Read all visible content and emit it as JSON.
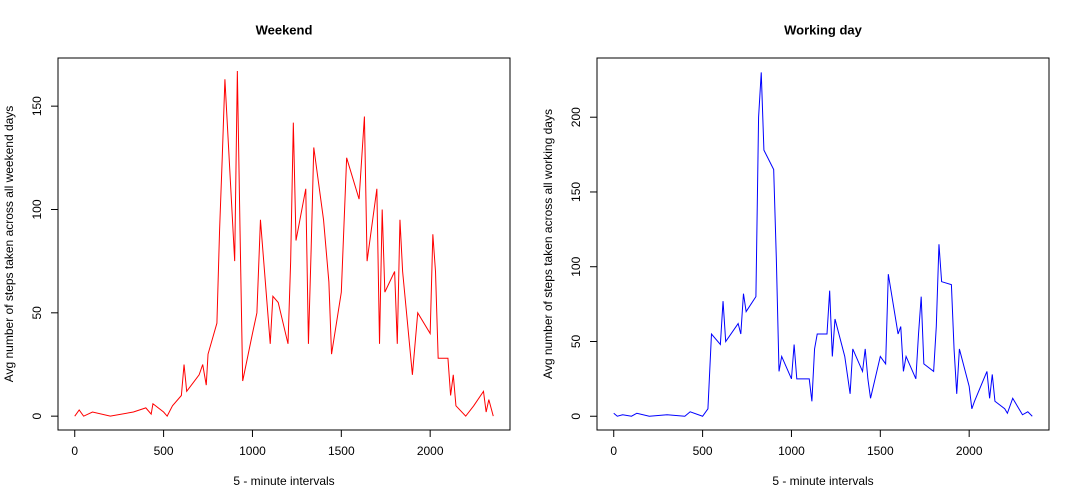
{
  "chart_data": [
    {
      "type": "line",
      "title": "Weekend",
      "x_label": "5 - minute intervals",
      "y_label": "Avg number of steps taken across all weekend days",
      "color": "#ff0000",
      "x": [
        0,
        25,
        50,
        100,
        200,
        330,
        400,
        430,
        440,
        500,
        520,
        550,
        600,
        615,
        630,
        700,
        720,
        740,
        750,
        800,
        815,
        830,
        845,
        900,
        915,
        930,
        945,
        1000,
        1025,
        1045,
        1100,
        1115,
        1145,
        1200,
        1215,
        1230,
        1245,
        1300,
        1315,
        1330,
        1345,
        1400,
        1430,
        1445,
        1500,
        1530,
        1600,
        1630,
        1645,
        1700,
        1715,
        1730,
        1745,
        1800,
        1815,
        1830,
        1845,
        1900,
        1930,
        2000,
        2015,
        2030,
        2045,
        2100,
        2115,
        2130,
        2145,
        2200,
        2245,
        2300,
        2315,
        2330,
        2355
      ],
      "values": [
        0,
        3,
        0,
        2,
        0,
        2,
        4,
        1,
        6,
        2,
        0,
        5,
        10,
        25,
        12,
        20,
        25,
        15,
        30,
        45,
        90,
        125,
        163,
        75,
        167,
        90,
        17,
        40,
        50,
        95,
        35,
        58,
        55,
        35,
        75,
        142,
        85,
        110,
        35,
        80,
        130,
        95,
        65,
        30,
        60,
        125,
        105,
        145,
        75,
        110,
        35,
        100,
        60,
        70,
        35,
        95,
        70,
        20,
        50,
        40,
        88,
        70,
        28,
        28,
        10,
        20,
        5,
        0,
        5,
        12,
        2,
        8,
        0
      ],
      "xlim": [
        -94.2,
        2449.2
      ],
      "ylim": [
        -6.7,
        173.3
      ],
      "xticks": [
        0,
        500,
        1000,
        1500,
        2000
      ],
      "yticks": [
        0,
        50,
        100,
        150
      ]
    },
    {
      "type": "line",
      "title": "Working day",
      "x_label": "5 - minute intervals",
      "y_label": "Avg number of steps taken across all working days",
      "color": "#0000ff",
      "x": [
        0,
        20,
        50,
        100,
        130,
        200,
        300,
        400,
        430,
        500,
        530,
        550,
        600,
        615,
        630,
        700,
        715,
        730,
        745,
        800,
        815,
        830,
        845,
        900,
        915,
        930,
        945,
        1000,
        1015,
        1030,
        1100,
        1115,
        1130,
        1145,
        1200,
        1215,
        1230,
        1245,
        1300,
        1330,
        1345,
        1400,
        1415,
        1430,
        1445,
        1500,
        1530,
        1545,
        1600,
        1615,
        1630,
        1645,
        1700,
        1715,
        1730,
        1745,
        1800,
        1815,
        1830,
        1845,
        1900,
        1915,
        1930,
        1945,
        2000,
        2015,
        2030,
        2100,
        2115,
        2130,
        2145,
        2200,
        2215,
        2245,
        2300,
        2330,
        2355
      ],
      "values": [
        2,
        0,
        1,
        0,
        2,
        0,
        1,
        0,
        3,
        0,
        5,
        55,
        48,
        77,
        50,
        62,
        55,
        82,
        70,
        80,
        200,
        230,
        178,
        165,
        105,
        30,
        40,
        25,
        48,
        25,
        25,
        10,
        45,
        55,
        55,
        84,
        40,
        65,
        40,
        15,
        45,
        30,
        45,
        25,
        12,
        40,
        35,
        95,
        55,
        60,
        30,
        40,
        25,
        55,
        80,
        35,
        30,
        60,
        115,
        90,
        88,
        45,
        15,
        45,
        20,
        5,
        10,
        30,
        12,
        28,
        10,
        5,
        2,
        12,
        1,
        3,
        0
      ],
      "xlim": [
        -94.2,
        2449.2
      ],
      "ylim": [
        -9.2,
        239.6
      ],
      "xticks": [
        0,
        500,
        1000,
        1500,
        2000
      ],
      "yticks": [
        0,
        50,
        100,
        150,
        200
      ]
    }
  ]
}
